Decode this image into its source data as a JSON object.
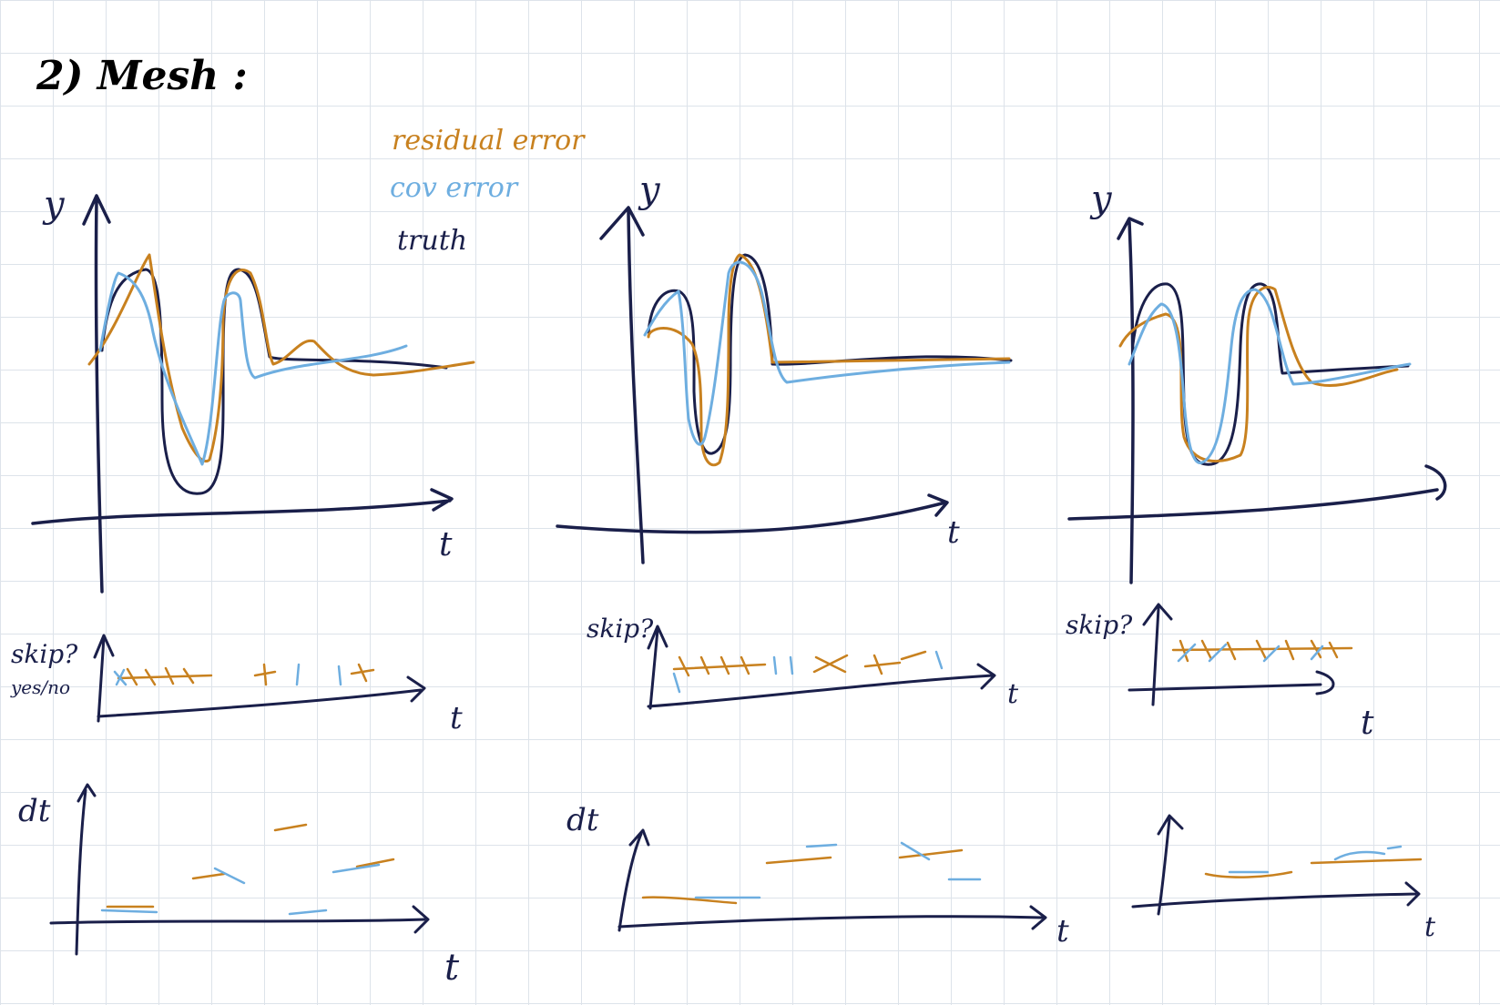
{
  "title": "2) Mesh :",
  "colors": {
    "truth": "#1a1f4a",
    "residual": "#c8811f",
    "cov": "#6eaee0",
    "grid": "#dde3ea"
  },
  "legend": [
    {
      "label": "residual error",
      "color_key": "residual"
    },
    {
      "label": "cov error",
      "color_key": "cov"
    },
    {
      "label": "truth",
      "color_key": "truth"
    }
  ],
  "panels": [
    {
      "main": {
        "y_label": "y",
        "x_label": "t"
      },
      "skip": {
        "y_label": "skip?",
        "y_sublabel": "yes/no",
        "x_label": "t"
      },
      "dt": {
        "y_label": "dt",
        "x_label": "t"
      }
    },
    {
      "main": {
        "y_label": "y",
        "x_label": "t"
      },
      "skip": {
        "y_label": "skip?",
        "y_sublabel": "",
        "x_label": "t"
      },
      "dt": {
        "y_label": "dt",
        "x_label": "t"
      }
    },
    {
      "main": {
        "y_label": "y",
        "x_label": ""
      },
      "skip": {
        "y_label": "skip?",
        "y_sublabel": "",
        "x_label": "t"
      },
      "dt": {
        "y_label": "",
        "x_label": "t"
      }
    }
  ]
}
